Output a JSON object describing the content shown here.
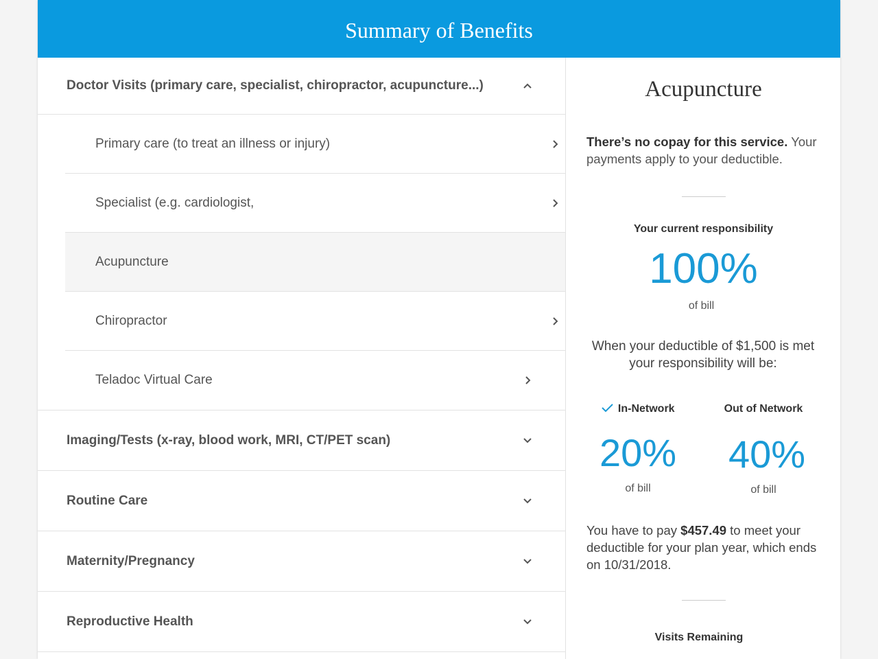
{
  "header": {
    "title": "Summary of Benefits"
  },
  "categories": [
    {
      "label": "Doctor Visits (primary care, specialist, chiropractor, acupuncture...)",
      "items": [
        "Primary care (to treat an illness or injury)",
        "Specialist (e.g. cardiologist,",
        "Acupuncture",
        "Chiropractor",
        "Teladoc Virtual Care"
      ]
    },
    {
      "label": "Imaging/Tests (x-ray, blood work, MRI, CT/PET scan)"
    },
    {
      "label": "Routine Care"
    },
    {
      "label": "Maternity/Pregnancy"
    },
    {
      "label": "Reproductive Health"
    }
  ],
  "detail": {
    "title": "Acupuncture",
    "copay_bold": "There’s no copay for this service.",
    "copay_rest": "Your payments apply to your deductible.",
    "current_label": "Your current responsibility",
    "current_value": "100%",
    "current_unit": "of bill",
    "deductible_text": "When your deductible of $1,500 is met your responsibility will be:",
    "in_network": {
      "label": "In-Network",
      "value": "20%",
      "unit": "of bill"
    },
    "out_network": {
      "label": "Out of Network",
      "value": "40%",
      "unit": "of bill"
    },
    "pay_pre": "You have to pay",
    "pay_amount": "$457.49",
    "pay_post": "to meet your deductible for your plan year, which ends on 10/31/2018.",
    "visits_label": "Visits Remaining"
  }
}
